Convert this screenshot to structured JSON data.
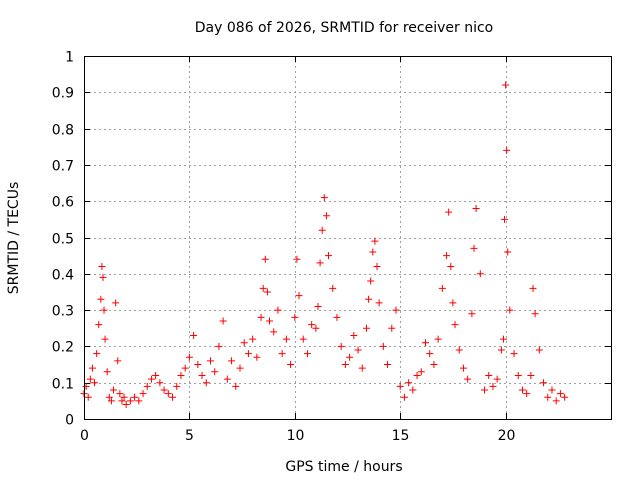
{
  "chart_data": {
    "type": "scatter",
    "title": "Day 086 of 2026, SRMTID for receiver nico",
    "xlabel": "GPS time / hours",
    "ylabel": "SRMTID / TECUs",
    "xlim": [
      0,
      25
    ],
    "ylim": [
      0,
      1
    ],
    "xticks": [
      0,
      5,
      10,
      15,
      20
    ],
    "xtick_labels": [
      "0",
      "5",
      "10",
      "15",
      "20"
    ],
    "yticks": [
      0,
      0.1,
      0.2,
      0.3,
      0.4,
      0.5,
      0.6,
      0.7,
      0.8,
      0.9,
      1
    ],
    "ytick_labels": [
      "0",
      "0.1",
      "0.2",
      "0.3",
      "0.4",
      "0.5",
      "0.6",
      "0.7",
      "0.8",
      "0.9",
      "1"
    ],
    "grid": true,
    "marker": "+",
    "series": [
      {
        "name": "SRMTID",
        "color": "#ff0000",
        "x": [
          0.0,
          0.1,
          0.2,
          0.3,
          0.4,
          0.5,
          0.6,
          0.7,
          0.8,
          0.85,
          0.9,
          0.95,
          1.0,
          1.1,
          1.2,
          1.3,
          1.4,
          1.5,
          1.6,
          1.7,
          1.8,
          1.9,
          2.0,
          2.2,
          2.4,
          2.6,
          2.8,
          3.0,
          3.2,
          3.4,
          3.6,
          3.8,
          4.0,
          4.2,
          4.4,
          4.6,
          4.8,
          5.0,
          5.2,
          5.4,
          5.6,
          5.8,
          6.0,
          6.2,
          6.4,
          6.6,
          6.8,
          7.0,
          7.2,
          7.4,
          7.6,
          7.8,
          8.0,
          8.2,
          8.4,
          8.5,
          8.6,
          8.7,
          8.8,
          9.0,
          9.2,
          9.4,
          9.6,
          9.8,
          10.0,
          10.1,
          10.2,
          10.4,
          10.6,
          10.8,
          11.0,
          11.1,
          11.2,
          11.3,
          11.4,
          11.5,
          11.6,
          11.8,
          12.0,
          12.2,
          12.4,
          12.6,
          12.8,
          13.0,
          13.2,
          13.4,
          13.5,
          13.6,
          13.7,
          13.8,
          13.9,
          14.0,
          14.2,
          14.4,
          14.6,
          14.8,
          15.0,
          15.2,
          15.4,
          15.6,
          15.8,
          16.0,
          16.2,
          16.4,
          16.6,
          16.8,
          17.0,
          17.2,
          17.3,
          17.4,
          17.5,
          17.6,
          17.8,
          18.0,
          18.2,
          18.4,
          18.5,
          18.6,
          18.8,
          19.0,
          19.2,
          19.4,
          19.6,
          19.8,
          19.9,
          19.95,
          20.0,
          20.05,
          20.1,
          20.2,
          20.4,
          20.6,
          20.8,
          21.0,
          21.2,
          21.3,
          21.4,
          21.6,
          21.8,
          22.0,
          22.2,
          22.4,
          22.6,
          22.8
        ],
        "y": [
          0.07,
          0.09,
          0.06,
          0.11,
          0.14,
          0.1,
          0.18,
          0.26,
          0.33,
          0.42,
          0.39,
          0.3,
          0.22,
          0.13,
          0.06,
          0.05,
          0.08,
          0.32,
          0.16,
          0.07,
          0.05,
          0.06,
          0.04,
          0.05,
          0.06,
          0.05,
          0.07,
          0.09,
          0.11,
          0.12,
          0.1,
          0.08,
          0.07,
          0.06,
          0.09,
          0.12,
          0.14,
          0.17,
          0.23,
          0.15,
          0.12,
          0.1,
          0.16,
          0.13,
          0.2,
          0.27,
          0.11,
          0.16,
          0.09,
          0.14,
          0.21,
          0.18,
          0.22,
          0.17,
          0.28,
          0.36,
          0.44,
          0.35,
          0.27,
          0.24,
          0.3,
          0.18,
          0.22,
          0.15,
          0.28,
          0.44,
          0.34,
          0.22,
          0.18,
          0.26,
          0.25,
          0.31,
          0.43,
          0.52,
          0.61,
          0.56,
          0.45,
          0.36,
          0.28,
          0.2,
          0.15,
          0.17,
          0.23,
          0.19,
          0.14,
          0.25,
          0.33,
          0.38,
          0.46,
          0.49,
          0.42,
          0.32,
          0.2,
          0.15,
          0.25,
          0.3,
          0.09,
          0.06,
          0.1,
          0.08,
          0.12,
          0.13,
          0.21,
          0.18,
          0.15,
          0.22,
          0.36,
          0.45,
          0.57,
          0.42,
          0.32,
          0.26,
          0.19,
          0.14,
          0.11,
          0.29,
          0.47,
          0.58,
          0.4,
          0.08,
          0.12,
          0.09,
          0.11,
          0.19,
          0.22,
          0.55,
          0.92,
          0.74,
          0.46,
          0.3,
          0.18,
          0.12,
          0.08,
          0.07,
          0.12,
          0.36,
          0.29,
          0.19,
          0.1,
          0.06,
          0.08,
          0.05,
          0.07,
          0.06
        ]
      }
    ]
  }
}
